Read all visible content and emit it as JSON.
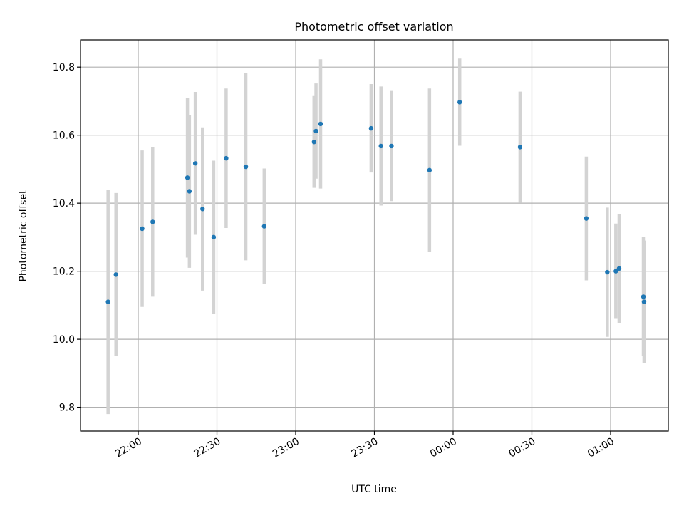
{
  "chart_data": {
    "type": "scatter",
    "title": "Photometric offset variation",
    "xlabel": "UTC time",
    "ylabel": "Photometric offset",
    "x_axis": "time",
    "xlim": [
      "21:38",
      "01:22"
    ],
    "ylim": [
      9.73,
      10.88
    ],
    "x_ticks": [
      "22:00",
      "22:30",
      "23:00",
      "23:30",
      "00:00",
      "00:30",
      "01:00"
    ],
    "y_ticks": [
      "9.8",
      "10.0",
      "10.2",
      "10.4",
      "10.6",
      "10.8"
    ],
    "grid": true,
    "legend": "none",
    "colors": {
      "marker": "#1f77b4",
      "errorbar": "#d3d3d3",
      "grid": "#b0b0b0"
    },
    "series": [
      {
        "x": [
          "21:48:30",
          "21:51:30",
          "22:01:30",
          "22:05:30",
          "22:18:45",
          "22:19:30",
          "22:21:45",
          "22:24:30",
          "22:28:45",
          "22:33:30",
          "22:41:00",
          "22:48:00",
          "23:07:00",
          "23:07:45",
          "23:09:30",
          "23:28:45",
          "23:32:30",
          "23:36:30",
          "23:51:00",
          "00:02:30",
          "00:25:30",
          "00:50:45",
          "00:58:45",
          "01:02:00",
          "01:03:15",
          "01:12:30",
          "01:12:45"
        ],
        "y": [
          10.11,
          10.19,
          10.325,
          10.345,
          10.475,
          10.435,
          10.517,
          10.383,
          10.3,
          10.532,
          10.507,
          10.332,
          10.58,
          10.612,
          10.633,
          10.62,
          10.568,
          10.568,
          10.497,
          10.697,
          10.565,
          10.355,
          10.197,
          10.2,
          10.208,
          10.125,
          10.11
        ],
        "yerr": [
          0.33,
          0.24,
          0.23,
          0.22,
          0.235,
          0.225,
          0.21,
          0.24,
          0.225,
          0.205,
          0.275,
          0.17,
          0.135,
          0.14,
          0.19,
          0.13,
          0.175,
          0.162,
          0.24,
          0.128,
          0.163,
          0.182,
          0.19,
          0.14,
          0.16,
          0.175,
          0.18
        ]
      }
    ]
  }
}
